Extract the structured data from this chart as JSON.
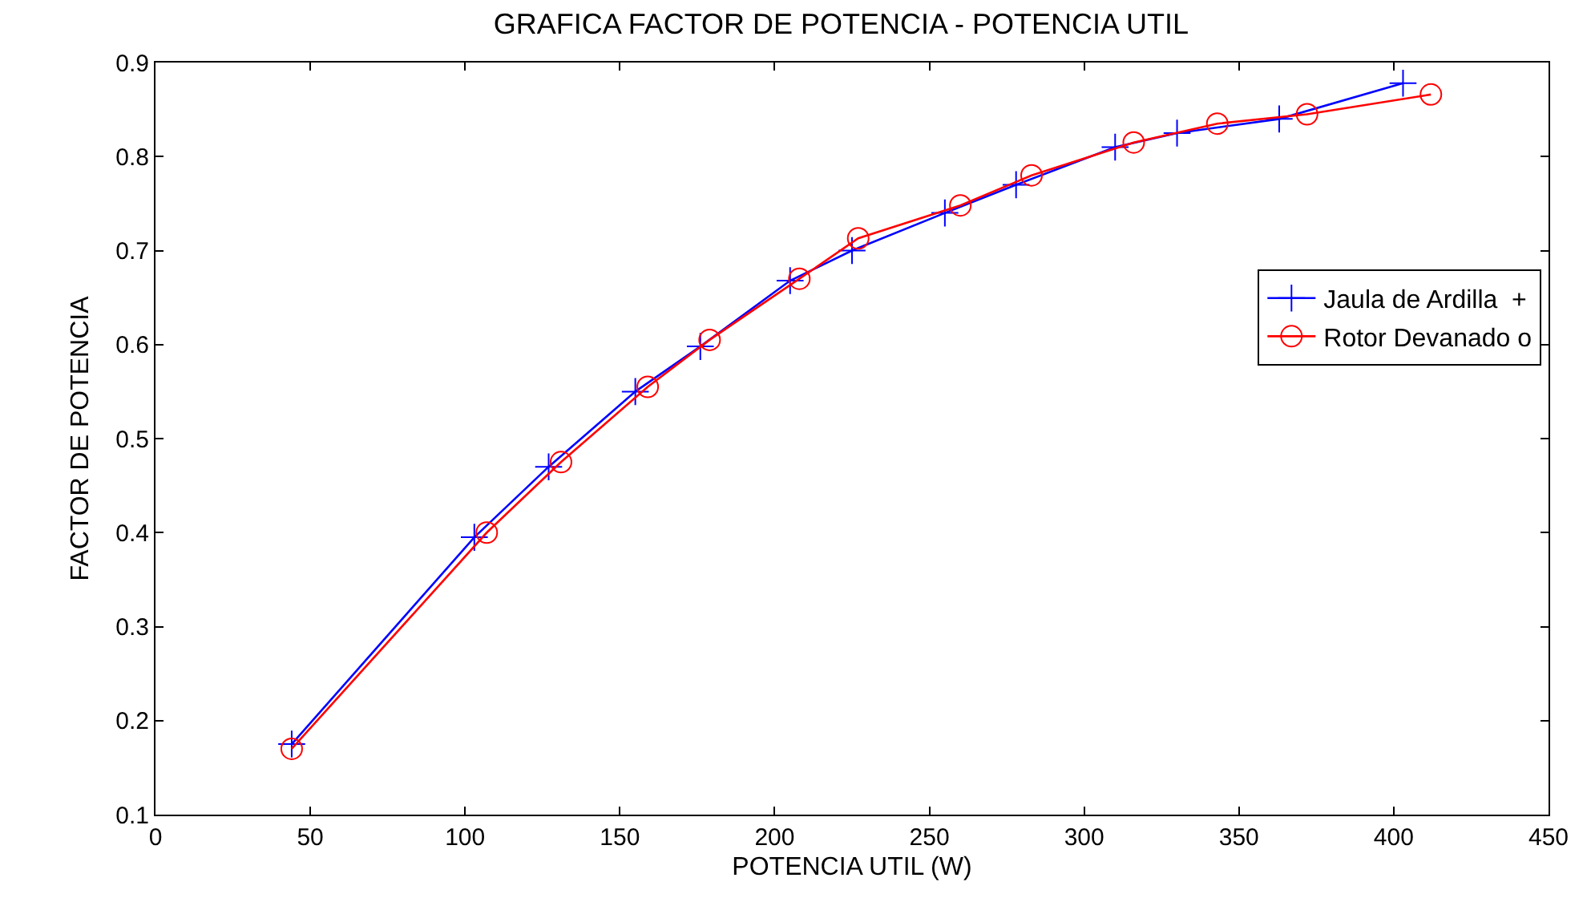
{
  "chart_data": {
    "type": "line",
    "title": "GRAFICA FACTOR DE POTENCIA - POTENCIA UTIL",
    "xlabel": "POTENCIA UTIL (W)",
    "ylabel": "FACTOR DE POTENCIA",
    "xlim": [
      0,
      450
    ],
    "xticks": [
      0,
      50,
      100,
      150,
      200,
      250,
      300,
      350,
      400,
      450
    ],
    "ylim": [
      0.1,
      0.9
    ],
    "yticks": [
      0.1,
      0.2,
      0.3,
      0.4,
      0.5,
      0.6,
      0.7,
      0.8,
      0.9
    ],
    "grid": false,
    "legend": "right",
    "line_style": "solid",
    "series": [
      {
        "name": "Jaula de Ardilla  +",
        "color": "#0000ff",
        "marker": "cross",
        "x": [
          44,
          103,
          127,
          155,
          176,
          205,
          225,
          255,
          278,
          310,
          330,
          363,
          403
        ],
        "values": [
          0.175,
          0.395,
          0.47,
          0.55,
          0.598,
          0.668,
          0.7,
          0.74,
          0.77,
          0.81,
          0.825,
          0.84,
          0.878
        ]
      },
      {
        "name": "Rotor Devanado o",
        "color": "#ff0000",
        "marker": "circle",
        "x": [
          44,
          107,
          131,
          159,
          179,
          208,
          227,
          260,
          283,
          316,
          343,
          372,
          412
        ],
        "values": [
          0.17,
          0.4,
          0.475,
          0.555,
          0.605,
          0.67,
          0.713,
          0.748,
          0.78,
          0.815,
          0.835,
          0.845,
          0.866
        ]
      }
    ]
  }
}
